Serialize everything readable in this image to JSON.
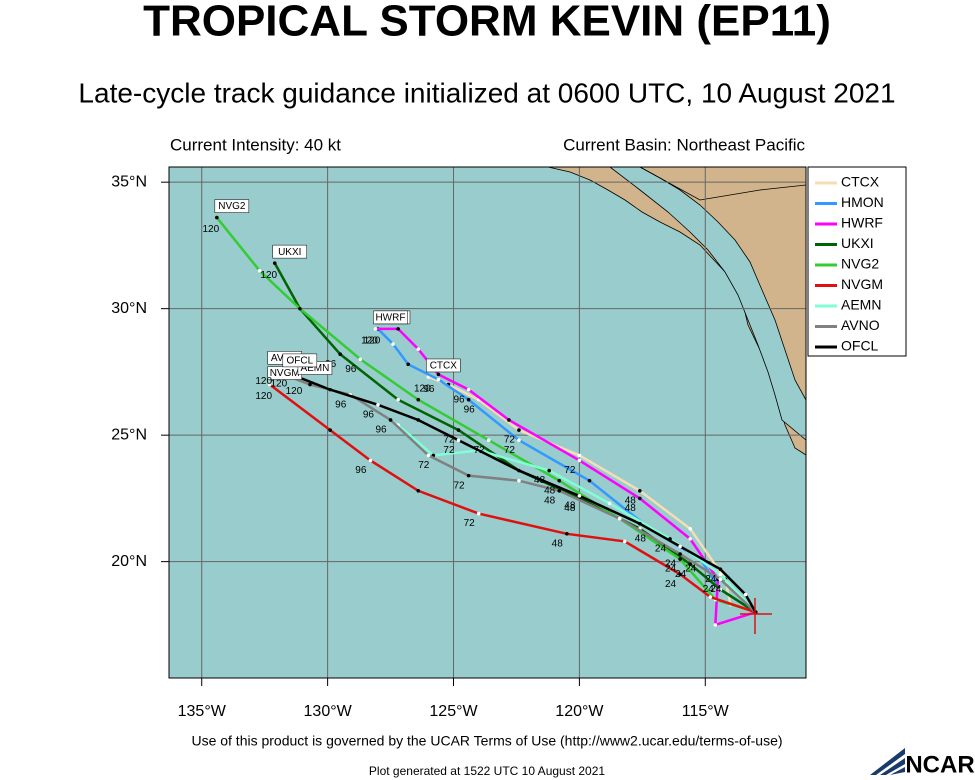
{
  "header": {
    "title": "TROPICAL STORM KEVIN (EP11)",
    "subtitle": "Late-cycle track guidance initialized at 0600 UTC, 10 August 2021",
    "intensity": "Current Intensity: 40 kt",
    "basin": "Current Basin: Northeast Pacific"
  },
  "chart_data": {
    "type": "track-map",
    "xlim": [
      -136.3,
      -111
    ],
    "ylim": [
      15.4,
      35.6
    ],
    "xticks": [
      {
        "value": -135,
        "label": "135°W"
      },
      {
        "value": -130,
        "label": "130°W"
      },
      {
        "value": -125,
        "label": "125°W"
      },
      {
        "value": -120,
        "label": "120°W"
      },
      {
        "value": -115,
        "label": "115°W"
      }
    ],
    "yticks": [
      {
        "value": 20,
        "label": "20°N"
      },
      {
        "value": 25,
        "label": "25°N"
      },
      {
        "value": 30,
        "label": "30°N"
      },
      {
        "value": 35,
        "label": "35°N"
      }
    ],
    "grid": true,
    "series": [
      {
        "name": "CTCX",
        "color": "#f5deb3",
        "lon": [
          -113.0,
          -114.0,
          -114.2,
          -115.6,
          -117.6,
          -120.0,
          -122.4,
          -124.0,
          -125.2,
          -126.0
        ],
        "lat": [
          18.0,
          18.3,
          19.3,
          21.3,
          22.8,
          24.2,
          25.2,
          26.4,
          27.0,
          27.3
        ],
        "labels": [
          null,
          null,
          "24",
          null,
          "48",
          null,
          "72",
          "96",
          null,
          "120"
        ]
      },
      {
        "name": "HMON",
        "color": "#3399ff",
        "lon": [
          -113.0,
          -114.4,
          -115.2,
          -117.2,
          -119.6,
          -122.4,
          -124.4,
          -125.6,
          -126.8,
          -127.4,
          -128.0
        ],
        "lat": [
          18.0,
          18.9,
          20.1,
          21.3,
          23.2,
          24.8,
          26.4,
          27.2,
          27.8,
          28.6,
          29.2
        ],
        "labels": [
          null,
          null,
          "24",
          "48",
          null,
          "72",
          null,
          "96",
          null,
          null,
          "120"
        ]
      },
      {
        "name": "HWRF",
        "color": "#ff00ff",
        "lon": [
          -113.0,
          -114.6,
          -114.5,
          -115.6,
          -117.6,
          -120.0,
          -122.8,
          -124.4,
          -125.6,
          -126.4,
          -127.2,
          -128.1
        ],
        "lat": [
          18.0,
          17.5,
          19.3,
          20.9,
          22.5,
          24.0,
          25.6,
          26.8,
          27.4,
          28.4,
          29.2,
          29.2
        ],
        "labels": [
          null,
          null,
          "24",
          null,
          "48",
          "72",
          null,
          "96",
          null,
          null,
          null,
          "120"
        ]
      },
      {
        "name": "UKXI",
        "color": "#006400",
        "lon": [
          -113.0,
          -114.4,
          -115.6,
          -117.6,
          -120.0,
          -122.4,
          -124.8,
          -127.2,
          -129.5,
          -131.1,
          -132.1
        ],
        "lat": [
          18.0,
          18.9,
          19.9,
          21.3,
          22.5,
          23.6,
          25.2,
          26.4,
          28.2,
          30.0,
          31.8
        ],
        "labels": [
          null,
          null,
          "24",
          null,
          "48",
          null,
          "72",
          null,
          "96",
          null,
          "120"
        ]
      },
      {
        "name": "NVG2",
        "color": "#33cc33",
        "lon": [
          -113.0,
          -114.6,
          -116.0,
          -118.4,
          -120.8,
          -123.6,
          -126.4,
          -128.7,
          -131.1,
          -132.7,
          -134.4
        ],
        "lat": [
          18.0,
          18.5,
          20.1,
          21.7,
          23.2,
          24.8,
          26.4,
          28.0,
          30.0,
          31.5,
          33.6
        ],
        "labels": [
          null,
          null,
          "24",
          null,
          "48",
          "72",
          null,
          "96",
          null,
          null,
          "120"
        ]
      },
      {
        "name": "NVGM",
        "color": "#e01010",
        "lon": [
          -113.0,
          -114.8,
          -116.0,
          -118.2,
          -120.5,
          -124.0,
          -126.4,
          -128.3,
          -129.9,
          -132.3
        ],
        "lat": [
          18.0,
          18.6,
          19.5,
          20.8,
          21.1,
          21.9,
          22.8,
          24.0,
          25.2,
          27.0
        ],
        "labels": [
          null,
          null,
          "24",
          null,
          "48",
          "72",
          null,
          "96",
          null,
          "120"
        ]
      },
      {
        "name": "AEMN",
        "color": "#7fffd4",
        "lon": [
          -113.0,
          -114.4,
          -116.4,
          -118.8,
          -121.2,
          -124.0,
          -125.8,
          -127.2,
          -129.1,
          -130.5,
          -131.1
        ],
        "lat": [
          18.0,
          19.5,
          20.9,
          22.3,
          23.6,
          24.4,
          24.2,
          25.4,
          26.6,
          27.0,
          27.2
        ],
        "labels": [
          null,
          null,
          "24",
          null,
          "48",
          null,
          "72",
          null,
          "96",
          null,
          "120"
        ]
      },
      {
        "name": "AVNO",
        "color": "#808080",
        "lon": [
          -113.0,
          -114.4,
          -116.0,
          -118.4,
          -120.8,
          -122.4,
          -124.4,
          -126.0,
          -127.5,
          -129.1,
          -130.7,
          -132.3
        ],
        "lat": [
          18.0,
          19.3,
          20.3,
          21.7,
          22.8,
          23.2,
          23.4,
          24.2,
          25.6,
          26.6,
          27.0,
          27.6
        ],
        "labels": [
          null,
          null,
          "24",
          null,
          "48",
          null,
          "72",
          null,
          "96",
          null,
          null,
          "120"
        ]
      },
      {
        "name": "OFCL",
        "color": "#000000",
        "lon": [
          -113.0,
          -113.4,
          -114.4,
          -116.0,
          -117.6,
          -120.0,
          -122.4,
          -124.8,
          -126.4,
          -128.0,
          -129.9,
          -131.7
        ],
        "lat": [
          18.0,
          18.7,
          19.7,
          20.6,
          21.5,
          22.6,
          23.6,
          24.8,
          25.6,
          26.2,
          26.8,
          27.5
        ],
        "labels": [
          null,
          null,
          "24",
          null,
          null,
          "48",
          null,
          "72",
          null,
          "96",
          null,
          "120"
        ]
      }
    ]
  },
  "footer": {
    "terms": "Use of this product is governed by the UCAR Terms of Use (http://www2.ucar.edu/terms-of-use)",
    "generated": "Plot generated at 1522 UTC   10 August 2021",
    "logo": "NCAR"
  }
}
